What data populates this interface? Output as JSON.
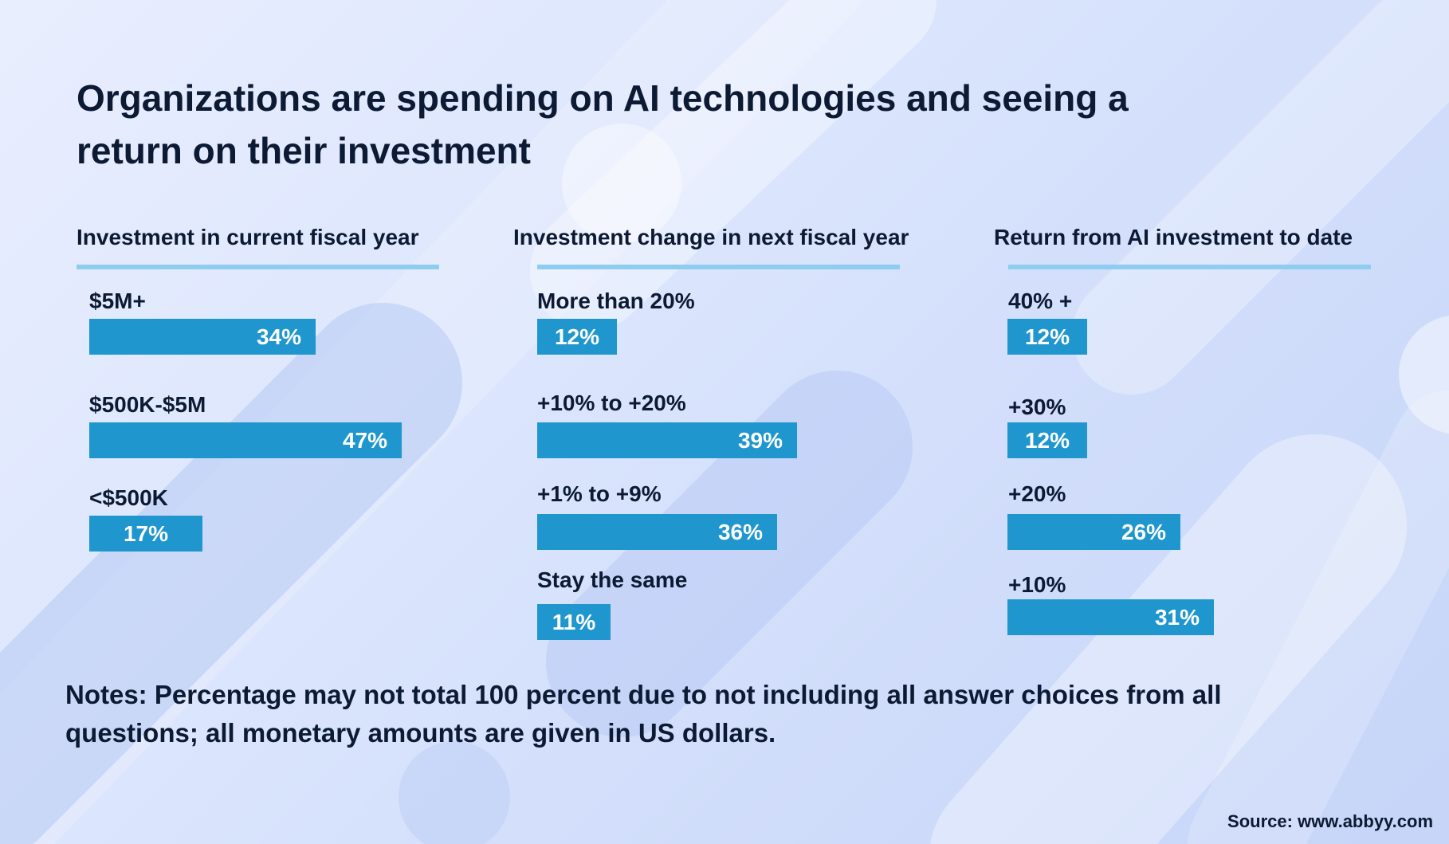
{
  "title": "Organizations are spending on AI technologies and seeing a return on their investment",
  "notes": "Notes: Percentage may not total 100 percent due to not including all answer choices from all questions; all monetary amounts are given in US dollars.",
  "source": "Source: www.abbyy.com",
  "colors": {
    "bar": "#1f96cd",
    "rule": "#8fcdf0",
    "text": "#0d1a33"
  },
  "chart_data": [
    {
      "type": "bar",
      "title": "Investment in current fiscal year",
      "categories": [
        "$5M+",
        "$500K-$5M",
        "<$500K"
      ],
      "values": [
        34,
        47,
        17
      ],
      "labels": [
        "34%",
        "47%",
        "17%"
      ],
      "unit": "%"
    },
    {
      "type": "bar",
      "title": "Investment change in next fiscal year",
      "categories": [
        "More than 20%",
        "+10% to +20%",
        "+1% to +9%",
        "Stay the same"
      ],
      "values": [
        12,
        39,
        36,
        11
      ],
      "labels": [
        "12%",
        "39%",
        "36%",
        "11%"
      ],
      "unit": "%"
    },
    {
      "type": "bar",
      "title": "Return from AI investment to date",
      "categories": [
        "40% +",
        "+30%",
        "+20%",
        "+10%"
      ],
      "values": [
        12,
        12,
        26,
        31
      ],
      "labels": [
        "12%",
        "12%",
        "26%",
        "31%"
      ],
      "unit": "%"
    }
  ]
}
